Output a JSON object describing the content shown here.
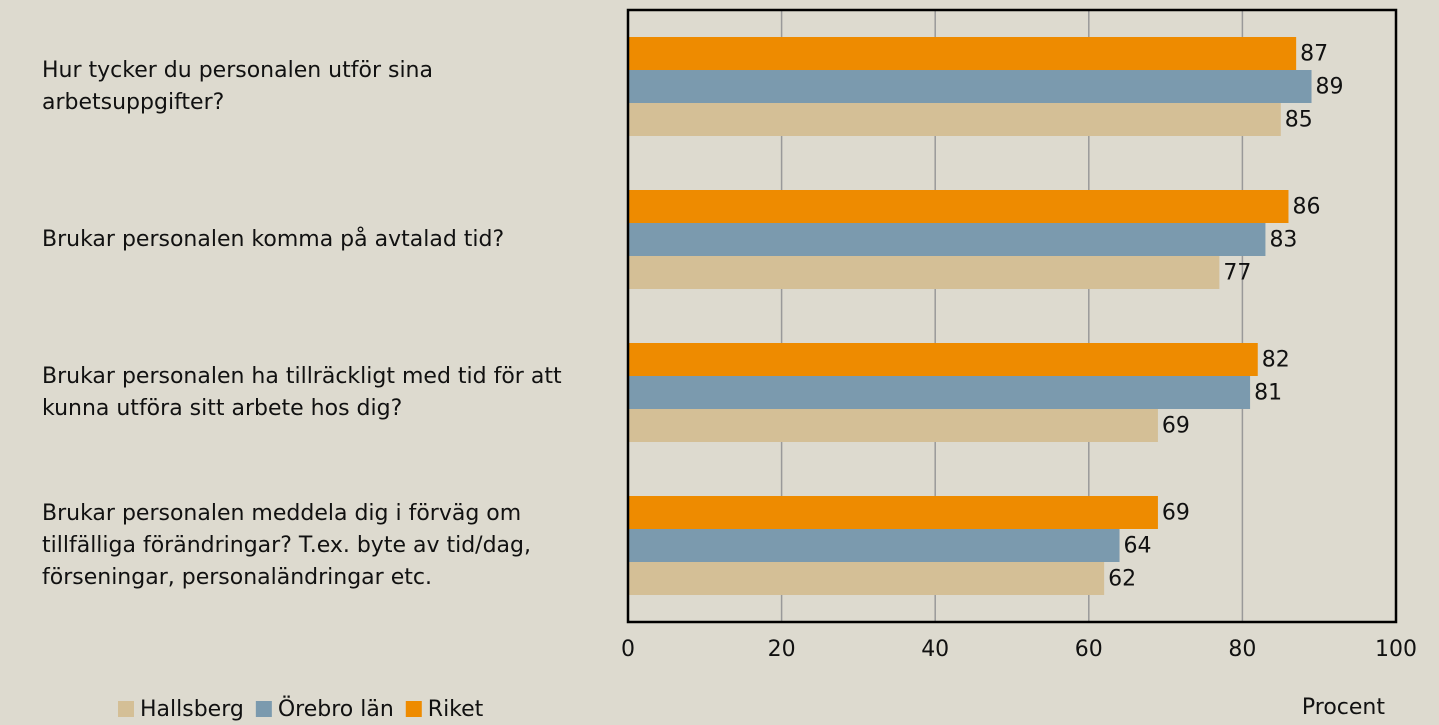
{
  "chart_data": {
    "type": "bar",
    "orientation": "horizontal",
    "categories": [
      "Hur tycker du personalen utför sina arbetsuppgifter?",
      "Brukar personalen komma på avtalad tid?",
      "Brukar personalen ha tillräckligt med tid för att kunna utföra sitt arbete hos dig?",
      "Brukar personalen meddela dig i förväg om tillfälliga förändringar? T.ex. byte av tid/dag, förseningar, personaländringar etc."
    ],
    "series": [
      {
        "name": "Hallsberg",
        "color": "#d4bf96",
        "values": [
          85,
          77,
          69,
          62
        ]
      },
      {
        "name": "Örebro län",
        "color": "#7b9aae",
        "values": [
          89,
          83,
          81,
          64
        ]
      },
      {
        "name": "Riket",
        "color": "#ee8b00",
        "values": [
          87,
          86,
          82,
          69
        ]
      }
    ],
    "xlabel": "Procent",
    "xlim": [
      0,
      100
    ],
    "xticks": [
      0,
      20,
      40,
      60,
      80,
      100
    ],
    "grid": true
  }
}
